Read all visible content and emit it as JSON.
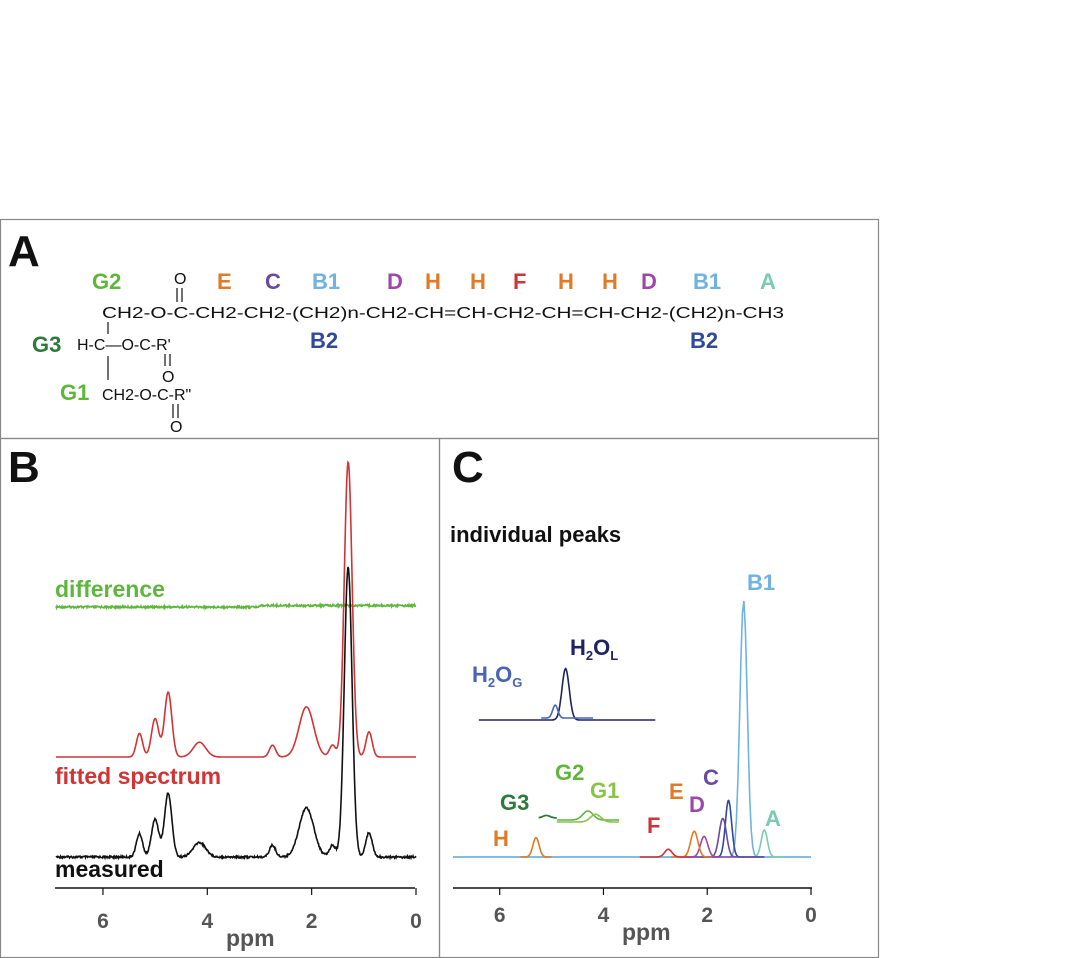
{
  "colors": {
    "green": "#5fb63d",
    "dark_green": "#2e7a3a",
    "orange": "#e07a26",
    "purple": "#6a4a9e",
    "light_blue": "#6fb3e0",
    "magenta": "#9d48a8",
    "red": "#d03435",
    "teal": "#7ccab0",
    "navy": "#2f4a9a",
    "dark_navy": "#1f245f",
    "frame": "#888888",
    "tick_text": "#555555"
  },
  "panel_a": {
    "label": "A",
    "top_labels": [
      {
        "text": "G2",
        "color": "green"
      },
      {
        "text": "E",
        "color": "orange"
      },
      {
        "text": "C",
        "color": "purple"
      },
      {
        "text": "B1",
        "color": "light_blue"
      },
      {
        "text": "D",
        "color": "magenta"
      },
      {
        "text": "H",
        "color": "orange"
      },
      {
        "text": "H",
        "color": "orange"
      },
      {
        "text": "F",
        "color": "red"
      },
      {
        "text": "H",
        "color": "orange"
      },
      {
        "text": "H",
        "color": "orange"
      },
      {
        "text": "D",
        "color": "magenta"
      },
      {
        "text": "B1",
        "color": "light_blue"
      },
      {
        "text": "A",
        "color": "teal"
      }
    ],
    "b2_labels": [
      "B2",
      "B2"
    ],
    "side_labels": [
      {
        "text": "G3",
        "color": "dark_green"
      },
      {
        "text": "G1",
        "color": "green"
      }
    ],
    "formula": {
      "row1": "CH2-O-C-CH2-CH2-(CH2)n-CH2-CH=CH-CH2-CH=CH-CH2-(CH2)n-CH3",
      "row2": "H-C—O-C-R'",
      "row3": "CH2-O-C-R\"",
      "oxygen": "O",
      "bond": "|"
    }
  },
  "panel_b": {
    "label": "B",
    "xlabel": "ppm",
    "ticks": [
      "6",
      "4",
      "2",
      "0"
    ],
    "trace_labels": [
      {
        "text": "difference",
        "color": "green"
      },
      {
        "text": "fitted spectrum",
        "color": "red"
      },
      {
        "text": "measured",
        "color": "#111111"
      }
    ]
  },
  "panel_c": {
    "label": "C",
    "subtitle": "individual peaks",
    "xlabel": "ppm",
    "ticks": [
      "6",
      "4",
      "2",
      "0"
    ],
    "peak_labels": {
      "B1": "B1",
      "A": "A",
      "C": "C",
      "D": "D",
      "E": "E",
      "F": "F",
      "G1": "G1",
      "G2": "G2",
      "G3": "G3",
      "H": "H",
      "water_g": "H",
      "water_g_main": "O",
      "water_g_sub2": "2",
      "water_g_subG": "G",
      "water_l": "H",
      "water_l_main": "O",
      "water_l_sub2": "2",
      "water_l_subL": "L"
    }
  },
  "chart_data": [
    {
      "type": "line",
      "panel": "B",
      "xlabel": "ppm",
      "xlim": [
        6.9,
        0
      ],
      "x_reversed": true,
      "xticks": [
        6,
        4,
        2,
        0
      ],
      "series": [
        {
          "name": "difference",
          "color": "#5fb63d",
          "offset": 0,
          "peaks": []
        },
        {
          "name": "fitted spectrum",
          "color": "#d03435",
          "peaks": [
            {
              "ppm": 1.3,
              "height": 1.0,
              "width": 0.075
            },
            {
              "ppm": 0.9,
              "height": 0.085,
              "width": 0.06
            },
            {
              "ppm": 1.6,
              "height": 0.04,
              "width": 0.06
            },
            {
              "ppm": 2.1,
              "height": 0.17,
              "width": 0.14
            },
            {
              "ppm": 2.75,
              "height": 0.04,
              "width": 0.06
            },
            {
              "ppm": 4.15,
              "height": 0.05,
              "width": 0.12
            },
            {
              "ppm": 4.75,
              "height": 0.22,
              "width": 0.07
            },
            {
              "ppm": 5.0,
              "height": 0.13,
              "width": 0.07
            },
            {
              "ppm": 5.3,
              "height": 0.08,
              "width": 0.06
            }
          ]
        },
        {
          "name": "measured",
          "color": "#111111",
          "peaks": [
            {
              "ppm": 1.3,
              "height": 1.0,
              "width": 0.075
            },
            {
              "ppm": 0.9,
              "height": 0.085,
              "width": 0.06
            },
            {
              "ppm": 1.6,
              "height": 0.04,
              "width": 0.06
            },
            {
              "ppm": 2.1,
              "height": 0.17,
              "width": 0.14
            },
            {
              "ppm": 2.75,
              "height": 0.04,
              "width": 0.06
            },
            {
              "ppm": 4.15,
              "height": 0.05,
              "width": 0.12
            },
            {
              "ppm": 4.75,
              "height": 0.22,
              "width": 0.07
            },
            {
              "ppm": 5.0,
              "height": 0.13,
              "width": 0.07
            },
            {
              "ppm": 5.3,
              "height": 0.08,
              "width": 0.06
            }
          ]
        }
      ]
    },
    {
      "type": "line",
      "panel": "C",
      "xlabel": "ppm",
      "xlim": [
        6.9,
        0
      ],
      "x_reversed": true,
      "xticks": [
        6,
        4,
        2,
        0
      ],
      "series": [
        {
          "name": "B1",
          "ppm": 1.3,
          "height": 1.0,
          "width": 0.07,
          "color": "#6fb3e0"
        },
        {
          "name": "A",
          "ppm": 0.9,
          "height": 0.105,
          "width": 0.06,
          "color": "#7ccab0"
        },
        {
          "name": "B2",
          "ppm": 1.59,
          "height": 0.22,
          "width": 0.06,
          "color": "#2f4a9a"
        },
        {
          "name": "C",
          "ppm": 1.7,
          "height": 0.15,
          "width": 0.07,
          "color": "#6a4a9e"
        },
        {
          "name": "D",
          "ppm": 2.06,
          "height": 0.08,
          "width": 0.07,
          "color": "#9d48a8"
        },
        {
          "name": "E",
          "ppm": 2.25,
          "height": 0.1,
          "width": 0.07,
          "color": "#e07a26"
        },
        {
          "name": "F",
          "ppm": 2.75,
          "height": 0.03,
          "width": 0.07,
          "color": "#d03435"
        },
        {
          "name": "H",
          "ppm": 5.3,
          "height": 0.075,
          "width": 0.06,
          "color": "#e07a26"
        },
        {
          "name": "G3",
          "ppm": 5.1,
          "height": 0.01,
          "width": 0.07,
          "color": "#2e7a3a"
        },
        {
          "name": "G2",
          "ppm": 4.3,
          "height": 0.035,
          "width": 0.1,
          "color": "#5fb63d"
        },
        {
          "name": "G1",
          "ppm": 4.15,
          "height": 0.03,
          "width": 0.1,
          "color": "#8bc34a"
        },
        {
          "name": "H2OL",
          "ppm": 4.73,
          "height": 0.2,
          "width": 0.07,
          "color": "#1f245f"
        },
        {
          "name": "H2OG",
          "ppm": 4.93,
          "height": 0.05,
          "width": 0.05,
          "color": "#4a64b4"
        }
      ]
    }
  ]
}
